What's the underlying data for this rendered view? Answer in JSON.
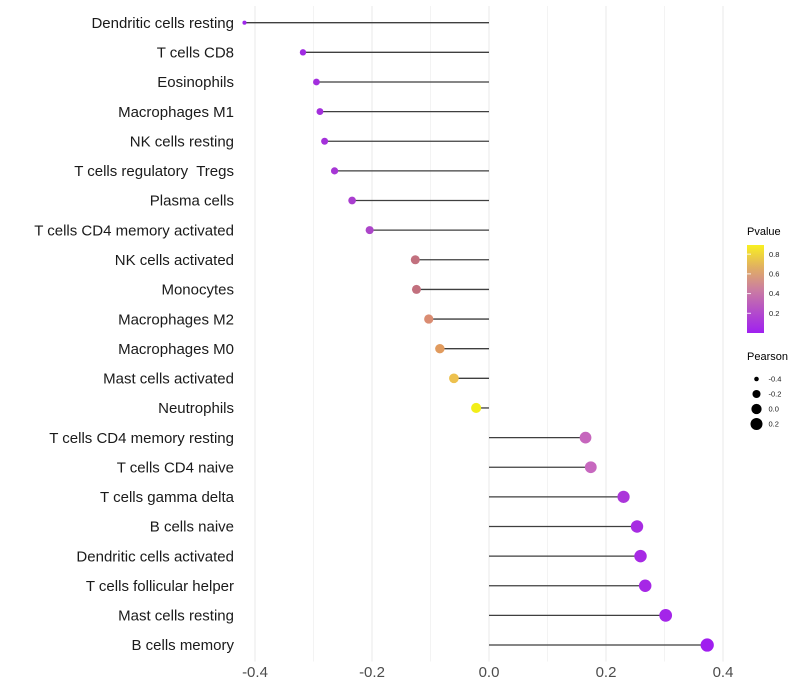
{
  "chart_data": {
    "type": "scatter",
    "style": "lollipop",
    "title": "",
    "xlabel": "",
    "ylabel": "",
    "xlim": [
      -0.46,
      0.41
    ],
    "grid": "vertical-only",
    "legend_position": "right",
    "x_axis": {
      "tick_values": [
        -0.4,
        -0.2,
        0.0,
        0.2,
        0.4
      ],
      "tick_labels": [
        "-0.4",
        "-0.2",
        "0.0",
        "0.2",
        "0.4"
      ],
      "minor_tick_values": [
        -0.3,
        -0.1,
        0.1,
        0.3
      ]
    },
    "categories": [
      "Dendritic cells resting",
      "T cells CD8",
      "Eosinophils",
      "Macrophages M1",
      "NK cells resting",
      "T cells regulatory  Tregs",
      "Plasma cells",
      "T cells CD4 memory activated",
      "NK cells activated",
      "Monocytes",
      "Macrophages M2",
      "Macrophages M0",
      "Mast cells activated",
      "Neutrophils",
      "T cells CD4 memory resting",
      "T cells CD4 naive",
      "T cells gamma delta",
      "B cells naive",
      "Dendritic cells activated",
      "T cells follicular helper",
      "Mast cells resting",
      "B cells memory"
    ],
    "items": [
      {
        "label": "Dendritic cells resting",
        "pearson": -0.418,
        "dot_color": "#9E27EA"
      },
      {
        "label": "T cells CD8",
        "pearson": -0.318,
        "dot_color": "#A02BE2"
      },
      {
        "label": "Eosinophils",
        "pearson": -0.295,
        "dot_color": "#A32EDE"
      },
      {
        "label": "Macrophages M1",
        "pearson": -0.289,
        "dot_color": "#A32FDC"
      },
      {
        "label": "NK cells resting",
        "pearson": -0.281,
        "dot_color": "#A431DA"
      },
      {
        "label": "T cells regulatory  Tregs",
        "pearson": -0.264,
        "dot_color": "#A636D5"
      },
      {
        "label": "Plasma cells",
        "pearson": -0.234,
        "dot_color": "#A93DCF"
      },
      {
        "label": "T cells CD4 memory activated",
        "pearson": -0.204,
        "dot_color": "#AC45C9"
      },
      {
        "label": "NK cells activated",
        "pearson": -0.126,
        "dot_color": "#C2707E"
      },
      {
        "label": "Monocytes",
        "pearson": -0.124,
        "dot_color": "#C2707E"
      },
      {
        "label": "Macrophages M2",
        "pearson": -0.103,
        "dot_color": "#DA8C72"
      },
      {
        "label": "Macrophages M0",
        "pearson": -0.084,
        "dot_color": "#E19B5E"
      },
      {
        "label": "Mast cells activated",
        "pearson": -0.06,
        "dot_color": "#EDC14E"
      },
      {
        "label": "Neutrophils",
        "pearson": -0.022,
        "dot_color": "#F2EE19"
      },
      {
        "label": "T cells CD4 memory resting",
        "pearson": 0.165,
        "dot_color": "#C666BD"
      },
      {
        "label": "T cells CD4 naive",
        "pearson": 0.174,
        "dot_color": "#C768BF"
      },
      {
        "label": "T cells gamma delta",
        "pearson": 0.23,
        "dot_color": "#AB36DA"
      },
      {
        "label": "B cells naive",
        "pearson": 0.253,
        "dot_color": "#A72CE2"
      },
      {
        "label": "Dendritic cells activated",
        "pearson": 0.259,
        "dot_color": "#A72AE4"
      },
      {
        "label": "T cells follicular helper",
        "pearson": 0.267,
        "dot_color": "#A627E6"
      },
      {
        "label": "Mast cells resting",
        "pearson": 0.302,
        "dot_color": "#A425E9"
      },
      {
        "label": "B cells memory",
        "pearson": 0.373,
        "dot_color": "#A01EEF"
      }
    ],
    "pvalue_legend": {
      "title": "Pvalue",
      "tick_labels": [
        "0.8",
        "0.6",
        "0.4",
        "0.2"
      ],
      "tick_values": [
        0.8,
        0.6,
        0.4,
        0.2
      ],
      "bar_value_range": [
        0.0,
        0.893
      ],
      "gradient_stops_bottom_to_top": [
        "#A020F0",
        "#B44EC9",
        "#CC7F9F",
        "#E1B061",
        "#F9F021"
      ]
    },
    "pearson_legend": {
      "title": "Pearson",
      "labels": [
        "-0.4",
        "-0.2",
        "0.0",
        "0.2"
      ],
      "values": [
        -0.4,
        -0.2,
        0.0,
        0.2
      ],
      "dot_color": "#000000"
    },
    "colors": {
      "stem": "#3F3F3F",
      "grid_major": "#E8E8E8",
      "grid_minor": "#F3F3F3",
      "y_label_text": "#1A1A1A",
      "x_tick_text": "#4C4C4C",
      "legend_label_text": "#1A1A1A"
    }
  }
}
